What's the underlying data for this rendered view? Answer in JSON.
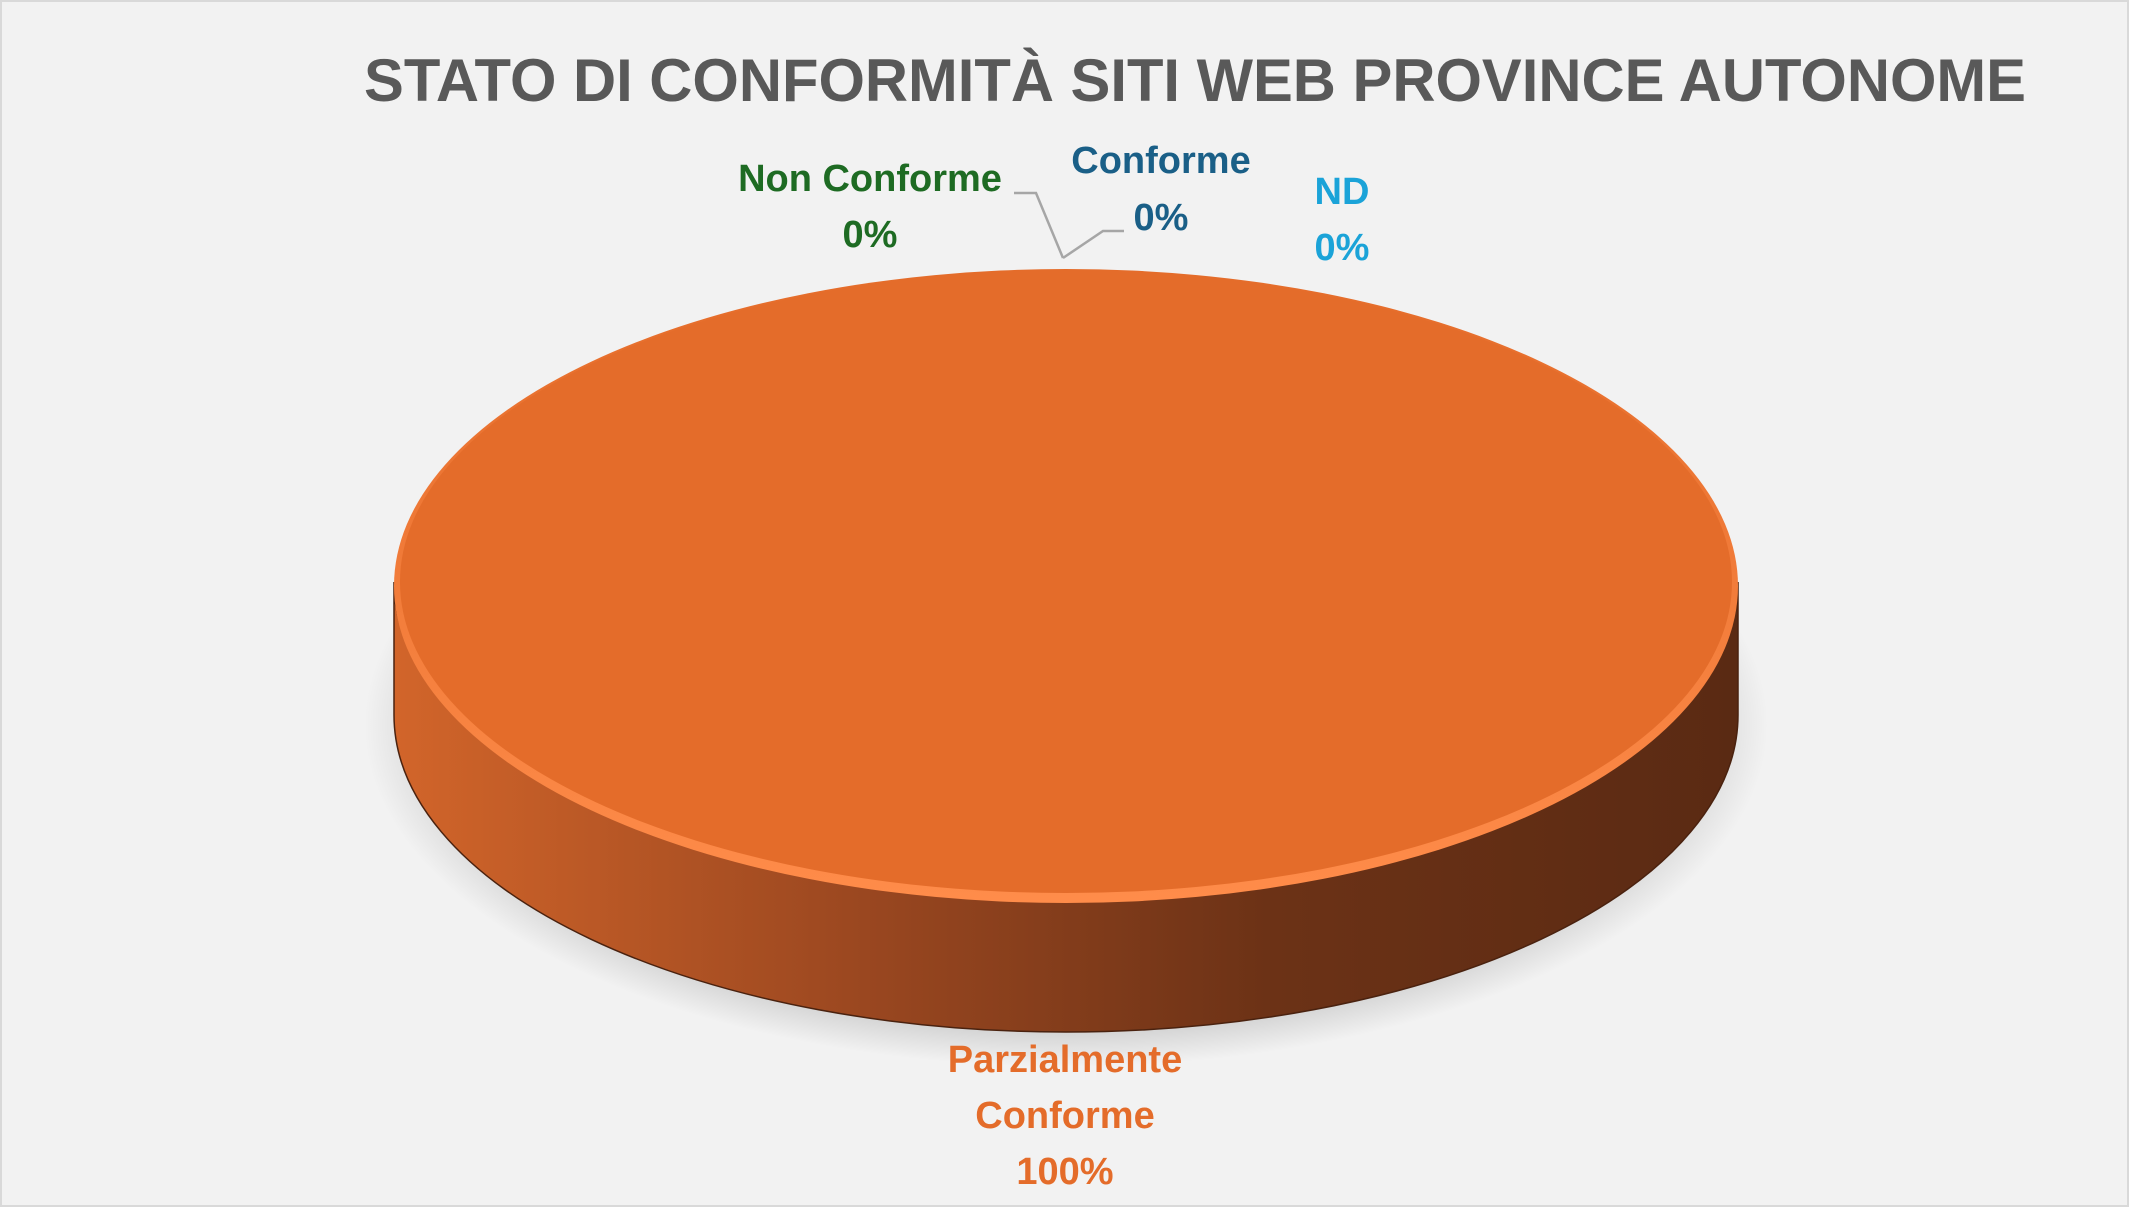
{
  "chart_data": {
    "type": "pie",
    "style": "3d",
    "title": "STATO DI CONFORMITÀ SITI WEB PROVINCE AUTONOME",
    "slices": [
      {
        "label": "Non Conforme",
        "value": 0,
        "percent_label": "0%",
        "color": "#1e6b23"
      },
      {
        "label": "Conforme",
        "value": 0,
        "percent_label": "0%",
        "color": "#1a5f87"
      },
      {
        "label": "ND",
        "value": 0,
        "percent_label": "0%",
        "color": "#1ba3d8"
      },
      {
        "label_lines": [
          "Parzialmente",
          "Conforme"
        ],
        "value": 100,
        "percent_label": "100%",
        "color": "#e46c2a"
      }
    ],
    "legend": "none"
  },
  "colors": {
    "background": "#f2f2f2",
    "title": "#595959",
    "leader": "#a6a6a6"
  }
}
